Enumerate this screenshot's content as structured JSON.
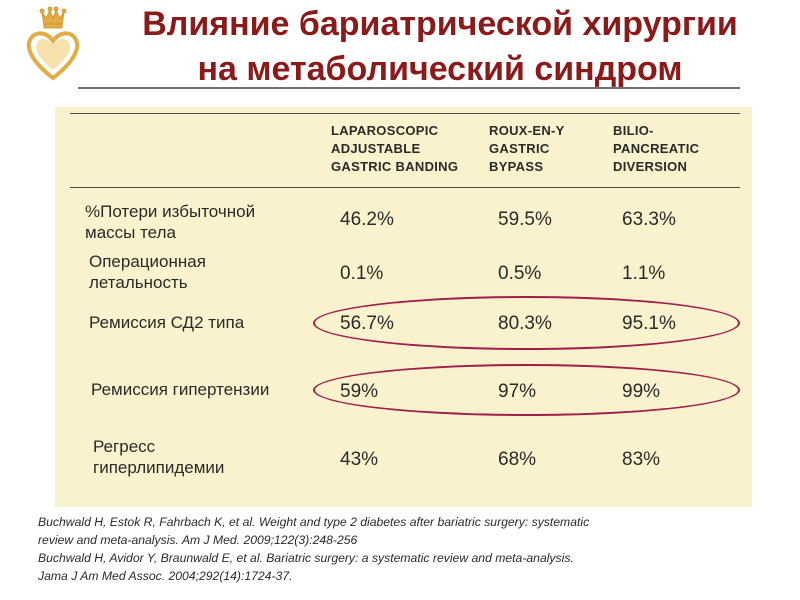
{
  "title": {
    "line1": "Влияние бариатрической хирургии",
    "line2": "на метаболический синдром"
  },
  "logo": {
    "icon": "crown-heart-emblem-icon",
    "colors": [
      "#e8b64a",
      "#d9a030"
    ]
  },
  "colors": {
    "title": "#8b1a1a",
    "panel": "#faf2cd",
    "highlight": "#a01e4a"
  },
  "table": {
    "columns": [
      {
        "lines": [
          "LAPAROSCOPIC",
          "ADJUSTABLE",
          "GASTRIC BANDING"
        ]
      },
      {
        "lines": [
          "ROUX-EN-Y",
          "GASTRIC",
          "BYPASS"
        ]
      },
      {
        "lines": [
          "BILIO-",
          "PANCREATIC",
          "DIVERSION"
        ]
      }
    ],
    "rows": [
      {
        "label": [
          "%Потери избыточной",
          "массы тела"
        ],
        "values": [
          "46.2%",
          "59.5%",
          "63.3%"
        ],
        "highlighted": false
      },
      {
        "label": [
          "Операционная",
          "летальность"
        ],
        "values": [
          "0.1%",
          "0.5%",
          "1.1%"
        ],
        "highlighted": false
      },
      {
        "label": [
          "Ремиссия СД2 типа"
        ],
        "values": [
          "56.7%",
          "80.3%",
          "95.1%"
        ],
        "highlighted": true
      },
      {
        "label": [
          "Ремиссия гипертензии"
        ],
        "values": [
          "59%",
          "97%",
          "99%"
        ],
        "highlighted": true
      },
      {
        "label": [
          "Регресс",
          "гиперлипидемии"
        ],
        "values": [
          "43%",
          "68%",
          "83%"
        ],
        "highlighted": false
      }
    ]
  },
  "references": [
    "Buchwald H, Estok R, Fahrbach K, et al. Weight and type 2 diabetes after bariatric surgery: systematic",
    "review and meta-analysis. Am J Med. 2009;122(3):248-256",
    "Buchwald H, Avidor Y, Braunwald E, et al. Bariatric surgery: a systematic review and meta-analysis.",
    "Jama J Am Med Assoc. 2004;292(14):1724-37."
  ]
}
